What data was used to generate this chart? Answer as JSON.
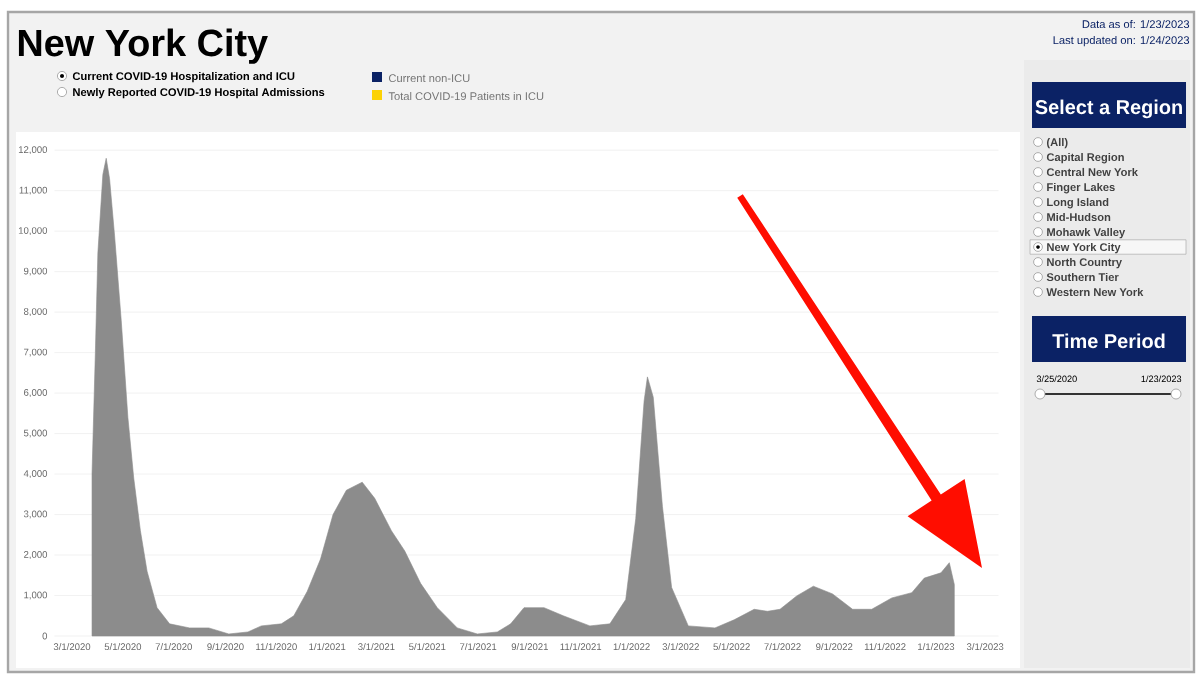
{
  "chart_data": {
    "type": "area",
    "title": "New York City",
    "x": [
      "2020-03-25",
      "2020-03-29",
      "2020-04-01",
      "2020-04-07",
      "2020-04-11",
      "2020-04-15",
      "2020-04-21",
      "2020-04-29",
      "2020-05-07",
      "2020-05-14",
      "2020-05-22",
      "2020-05-30",
      "2020-06-11",
      "2020-06-26",
      "2020-07-20",
      "2020-08-12",
      "2020-09-05",
      "2020-09-28",
      "2020-10-14",
      "2020-11-07",
      "2020-11-22",
      "2020-12-08",
      "2020-12-24",
      "2021-01-08",
      "2021-01-24",
      "2021-02-12",
      "2021-02-27",
      "2021-03-19",
      "2021-04-04",
      "2021-04-23",
      "2021-05-13",
      "2021-06-06",
      "2021-06-30",
      "2021-07-24",
      "2021-08-09",
      "2021-08-25",
      "2021-09-18",
      "2021-10-11",
      "2021-11-12",
      "2021-12-06",
      "2021-12-25",
      "2022-01-06",
      "2022-01-16",
      "2022-01-20",
      "2022-01-27",
      "2022-02-07",
      "2022-02-18",
      "2022-03-10",
      "2022-04-11",
      "2022-05-04",
      "2022-05-28",
      "2022-06-13",
      "2022-06-28",
      "2022-07-18",
      "2022-08-07",
      "2022-08-30",
      "2022-09-23",
      "2022-10-16",
      "2022-11-09",
      "2022-12-03",
      "2022-12-18",
      "2023-01-07",
      "2023-01-17",
      "2023-01-23"
    ],
    "series": [
      {
        "color": "#8c8c8c",
        "values": [
          4000,
          7000,
          9460,
          11400,
          11800,
          11300,
          9900,
          7800,
          5400,
          3900,
          2600,
          1600,
          700,
          300,
          200,
          200,
          50,
          100,
          250,
          300,
          500,
          1100,
          1900,
          3000,
          3600,
          3800,
          3400,
          2600,
          2100,
          1300,
          700,
          200,
          50,
          100,
          300,
          700,
          700,
          500,
          250,
          300,
          900,
          2900,
          5800,
          6400,
          5900,
          3200,
          1200,
          250,
          200,
          400,
          660,
          610,
          660,
          990,
          1230,
          1040,
          660,
          660,
          940,
          1070,
          1430,
          1560,
          1810,
          1270
        ]
      }
    ],
    "xlim": [
      "2020-02-09",
      "2023-03-17"
    ],
    "xticks": [
      {
        "value": "2020-03-01",
        "label": "3/1/2020"
      },
      {
        "value": "2020-05-01",
        "label": "5/1/2020"
      },
      {
        "value": "2020-07-01",
        "label": "7/1/2020"
      },
      {
        "value": "2020-09-01",
        "label": "9/1/2020"
      },
      {
        "value": "2020-11-01",
        "label": "11/1/2020"
      },
      {
        "value": "2021-01-01",
        "label": "1/1/2021"
      },
      {
        "value": "2021-03-01",
        "label": "3/1/2021"
      },
      {
        "value": "2021-05-01",
        "label": "5/1/2021"
      },
      {
        "value": "2021-07-01",
        "label": "7/1/2021"
      },
      {
        "value": "2021-09-01",
        "label": "9/1/2021"
      },
      {
        "value": "2021-11-01",
        "label": "11/1/2021"
      },
      {
        "value": "2022-01-01",
        "label": "1/1/2022"
      },
      {
        "value": "2022-03-01",
        "label": "3/1/2022"
      },
      {
        "value": "2022-05-01",
        "label": "5/1/2022"
      },
      {
        "value": "2022-07-01",
        "label": "7/1/2022"
      },
      {
        "value": "2022-09-01",
        "label": "9/1/2022"
      },
      {
        "value": "2022-11-01",
        "label": "11/1/2022"
      },
      {
        "value": "2023-01-01",
        "label": "1/1/2023"
      },
      {
        "value": "2023-03-01",
        "label": "3/1/2023"
      }
    ],
    "ylim": [
      0,
      12350
    ],
    "yticks": [
      0,
      {
        "value": 1000,
        "label": "1,000"
      },
      {
        "value": 2000,
        "label": "2,000"
      },
      {
        "value": 3000,
        "label": "3,000"
      },
      {
        "value": 4000,
        "label": "4,000"
      },
      {
        "value": 5000,
        "label": "5,000"
      },
      {
        "value": 6000,
        "label": "6,000"
      },
      {
        "value": 7000,
        "label": "7,000"
      },
      {
        "value": 8000,
        "label": "8,000"
      },
      {
        "value": 9000,
        "label": "9,000"
      },
      {
        "value": 10000,
        "label": "10,000"
      },
      {
        "value": 11000,
        "label": "11,000"
      },
      {
        "value": 12000,
        "label": "12,000"
      }
    ],
    "grid": "y",
    "annotations": [
      "Data as of: 1/23/2023",
      "Last updated on: 1/24/2023",
      "Current COVID-19 Hospitalization and ICU",
      "Newly Reported COVID-19 Hospital Admissions",
      "Current non-ICU",
      "Total COVID-19 Patients in ICU",
      "Select a Region",
      "(All)",
      "Capital Region",
      "Central New York",
      "Finger Lakes",
      "Long Island",
      "Mid-Hudson",
      "Mohawk Valley",
      "New York City",
      "North Country",
      "Southern Tier",
      "Western New York",
      "Time Period",
      "3/25/2020",
      "1/23/2023"
    ]
  }
}
